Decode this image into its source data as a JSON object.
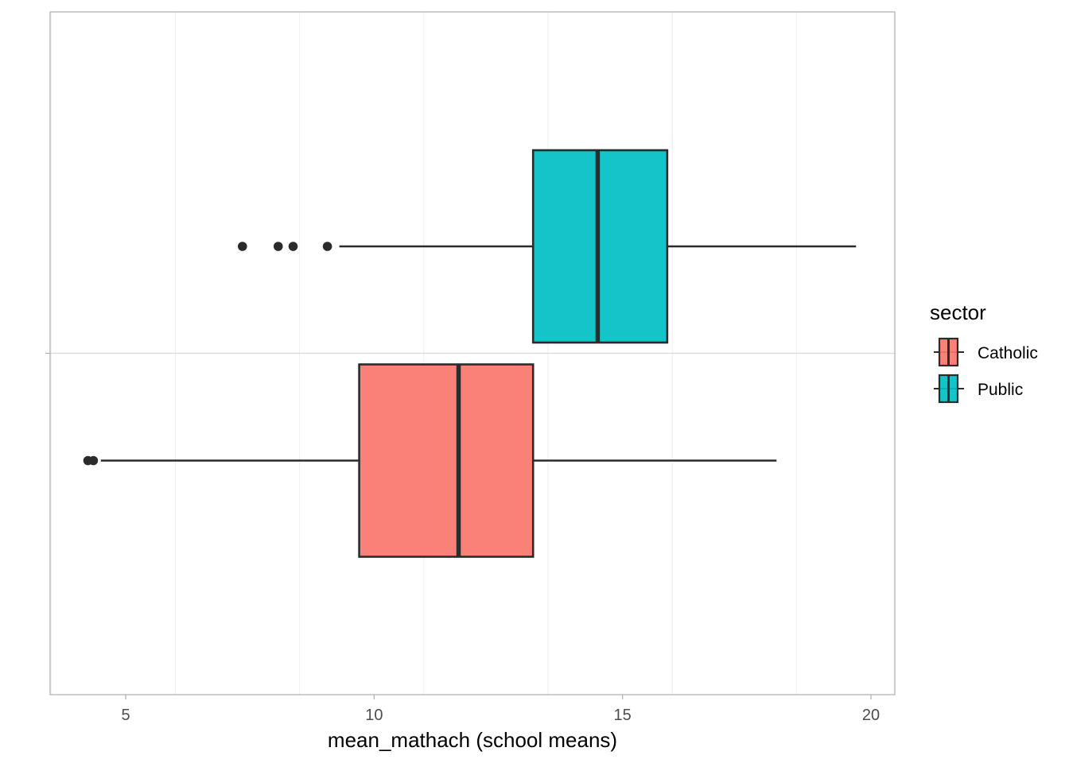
{
  "chart_data": {
    "type": "boxplot",
    "orientation": "horizontal",
    "xlabel": "mean_mathach (school means)",
    "ylabel": "",
    "xlim": [
      3.5,
      20.5
    ],
    "x_ticks": [
      5,
      10,
      15,
      20
    ],
    "x_tick_labels": [
      "5",
      "10",
      "15",
      "20"
    ],
    "grid": true,
    "legend": {
      "title": "sector",
      "position": "right",
      "entries": [
        "Catholic",
        "Public"
      ]
    },
    "series": [
      {
        "name": "Catholic",
        "color": "#F8766D",
        "whisker_low": 4.5,
        "q1": 9.7,
        "median": 11.7,
        "q3": 13.2,
        "whisker_high": 18.1,
        "outliers": [
          4.24,
          4.35
        ]
      },
      {
        "name": "Public",
        "color": "#00BFC4",
        "whisker_low": 9.3,
        "q1": 13.2,
        "median": 14.5,
        "q3": 15.9,
        "whisker_high": 19.7,
        "outliers": [
          7.35,
          8.07,
          8.37,
          9.06
        ]
      }
    ]
  }
}
